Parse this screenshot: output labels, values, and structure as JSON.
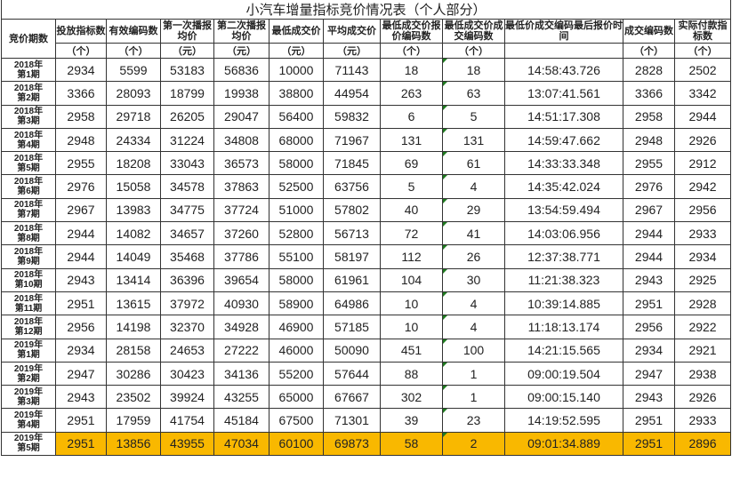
{
  "title": "小汽车增量指标竞价情况表（个人部分）",
  "columns": [
    {
      "label": "竞价期数",
      "unit": ""
    },
    {
      "label": "投放指标数",
      "unit": "（个）"
    },
    {
      "label": "有效编码数",
      "unit": "（个）"
    },
    {
      "label": "第一次播报均价",
      "unit": "（元）"
    },
    {
      "label": "第二次播报均价",
      "unit": "（元）"
    },
    {
      "label": "最低成交价",
      "unit": "（元）"
    },
    {
      "label": "平均成交价",
      "unit": "（元）"
    },
    {
      "label": "最低成交价报价编码数",
      "unit": "（个）"
    },
    {
      "label": "最低成交价成交编码数",
      "unit": "（个）"
    },
    {
      "label": "最低价成交编码最后报价时间",
      "unit": ""
    },
    {
      "label": "成交编码数",
      "unit": "（个）"
    },
    {
      "label": "实际付款指标数",
      "unit": "（个）"
    }
  ],
  "highlight_color": "#f9b800",
  "rows": [
    [
      "2018年第1期",
      "2934",
      "5599",
      "53183",
      "56836",
      "10000",
      "71143",
      "18",
      "18",
      "14:58:43.726",
      "2828",
      "2502"
    ],
    [
      "2018年第2期",
      "3366",
      "28093",
      "18799",
      "19938",
      "38800",
      "44954",
      "263",
      "63",
      "13:07:41.561",
      "3366",
      "3342"
    ],
    [
      "2018年第3期",
      "2958",
      "29718",
      "26205",
      "29047",
      "56400",
      "59832",
      "6",
      "5",
      "14:51:17.308",
      "2958",
      "2944"
    ],
    [
      "2018年第4期",
      "2948",
      "24334",
      "31224",
      "34808",
      "68000",
      "71967",
      "131",
      "131",
      "14:59:47.662",
      "2948",
      "2926"
    ],
    [
      "2018年第5期",
      "2955",
      "18208",
      "33043",
      "36573",
      "58000",
      "71845",
      "69",
      "61",
      "14:33:33.348",
      "2955",
      "2912"
    ],
    [
      "2018年第6期",
      "2976",
      "15058",
      "34578",
      "37863",
      "52500",
      "63756",
      "5",
      "4",
      "14:35:42.024",
      "2976",
      "2942"
    ],
    [
      "2018年第7期",
      "2967",
      "13983",
      "34775",
      "37724",
      "51000",
      "57802",
      "40",
      "29",
      "13:54:59.494",
      "2967",
      "2956"
    ],
    [
      "2018年第8期",
      "2944",
      "14082",
      "34657",
      "37260",
      "52800",
      "56713",
      "72",
      "41",
      "14:03:06.956",
      "2944",
      "2933"
    ],
    [
      "2018年第9期",
      "2944",
      "14049",
      "35468",
      "37786",
      "55100",
      "58197",
      "112",
      "26",
      "12:37:38.771",
      "2944",
      "2934"
    ],
    [
      "2018年第10期",
      "2943",
      "13414",
      "36396",
      "39654",
      "58000",
      "61961",
      "104",
      "30",
      "11:21:38.323",
      "2943",
      "2925"
    ],
    [
      "2018年第11期",
      "2951",
      "13615",
      "37972",
      "40930",
      "58900",
      "64986",
      "10",
      "4",
      "10:39:14.885",
      "2951",
      "2928"
    ],
    [
      "2018年第12期",
      "2956",
      "14198",
      "32370",
      "34928",
      "46900",
      "57185",
      "10",
      "4",
      "11:18:13.174",
      "2956",
      "2922"
    ],
    [
      "2019年第1期",
      "2934",
      "28158",
      "24653",
      "27222",
      "46000",
      "50090",
      "451",
      "100",
      "14:21:15.565",
      "2934",
      "2921"
    ],
    [
      "2019年第2期",
      "2947",
      "30286",
      "30423",
      "34136",
      "55200",
      "57644",
      "88",
      "1",
      "09:00:19.504",
      "2947",
      "2938"
    ],
    [
      "2019年第3期",
      "2943",
      "23502",
      "39924",
      "43255",
      "65000",
      "67667",
      "302",
      "1",
      "09:00:15.140",
      "2943",
      "2926"
    ],
    [
      "2019年第4期",
      "2951",
      "17959",
      "41754",
      "45184",
      "67500",
      "71301",
      "39",
      "23",
      "14:19:52.595",
      "2951",
      "2933"
    ],
    [
      "2019年第5期",
      "2951",
      "13856",
      "43955",
      "47034",
      "60100",
      "69873",
      "58",
      "2",
      "09:01:34.889",
      "2951",
      "2896"
    ]
  ],
  "highlighted_row": 16
}
